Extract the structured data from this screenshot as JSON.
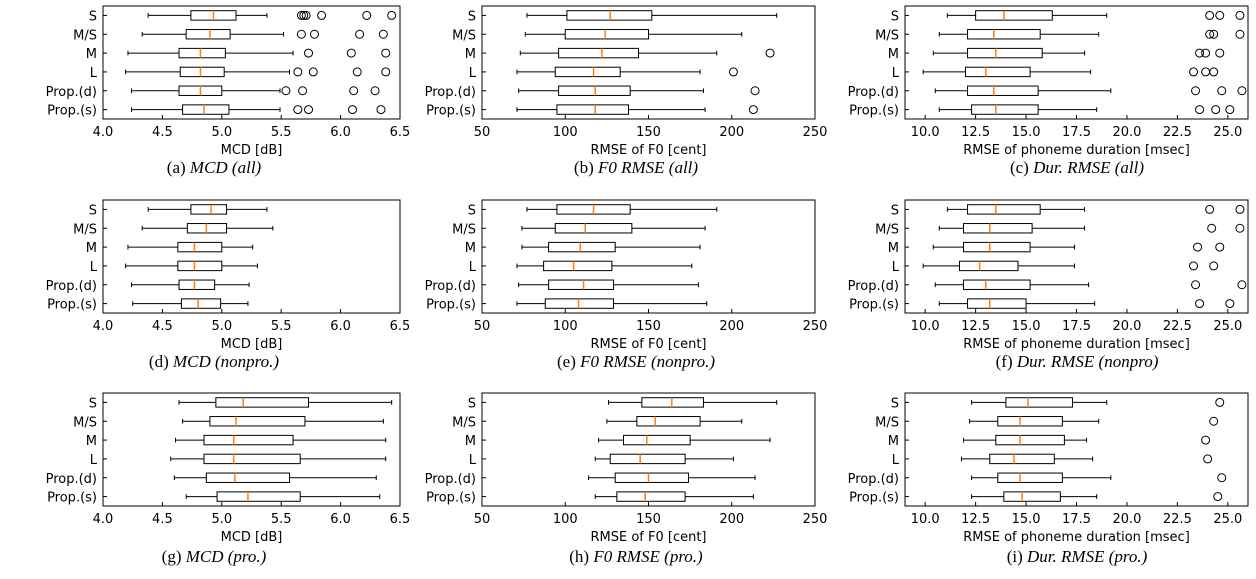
{
  "theme": {
    "median_color": "#ff7f0e",
    "box_color": "#000000"
  },
  "chart_data": [
    {
      "type": "boxplot",
      "panel_id": "a",
      "caption_label": "(a)",
      "caption_title": "MCD (all)",
      "xlabel": "MCD [dB]",
      "xlim": [
        4.0,
        6.5
      ],
      "xticks": [
        4.0,
        4.5,
        5.0,
        5.5,
        6.0,
        6.5
      ],
      "xtick_labels": [
        "4.0",
        "4.5",
        "5.0",
        "5.5",
        "6.0",
        "6.5"
      ],
      "categories": [
        "S",
        "M/S",
        "M",
        "L",
        "Prop.(d)",
        "Prop.(s)"
      ],
      "boxes": [
        {
          "whislo": 4.38,
          "q1": 4.74,
          "med": 4.93,
          "q3": 5.12,
          "whishi": 5.38,
          "fliers": [
            5.67,
            5.69,
            5.71,
            5.84,
            6.22,
            6.43
          ]
        },
        {
          "whislo": 4.33,
          "q1": 4.7,
          "med": 4.9,
          "q3": 5.07,
          "whishi": 5.52,
          "fliers": [
            5.67,
            5.78,
            6.16,
            6.36
          ]
        },
        {
          "whislo": 4.21,
          "q1": 4.64,
          "med": 4.82,
          "q3": 5.03,
          "whishi": 5.6,
          "fliers": [
            5.73,
            6.09,
            6.38
          ]
        },
        {
          "whislo": 4.19,
          "q1": 4.65,
          "med": 4.82,
          "q3": 5.02,
          "whishi": 5.57,
          "fliers": [
            5.64,
            5.77,
            6.14,
            6.38
          ]
        },
        {
          "whislo": 4.24,
          "q1": 4.64,
          "med": 4.82,
          "q3": 5.0,
          "whishi": 5.49,
          "fliers": [
            5.54,
            5.68,
            6.11,
            6.29
          ]
        },
        {
          "whislo": 4.24,
          "q1": 4.67,
          "med": 4.85,
          "q3": 5.06,
          "whishi": 5.49,
          "fliers": [
            5.64,
            5.73,
            6.1,
            6.34
          ]
        }
      ]
    },
    {
      "type": "boxplot",
      "panel_id": "b",
      "caption_label": "(b)",
      "caption_title": "F0 RMSE (all)",
      "xlabel": "RMSE of F0 [cent]",
      "xlim": [
        50,
        250
      ],
      "xticks": [
        50,
        100,
        150,
        200,
        250
      ],
      "xtick_labels": [
        "50",
        "100",
        "150",
        "200",
        "250"
      ],
      "categories": [
        "S",
        "M/S",
        "M",
        "L",
        "Prop.(d)",
        "Prop.(s)"
      ],
      "boxes": [
        {
          "whislo": 77,
          "q1": 101,
          "med": 127,
          "q3": 152,
          "whishi": 227,
          "fliers": []
        },
        {
          "whislo": 76,
          "q1": 100,
          "med": 124,
          "q3": 150,
          "whishi": 206,
          "fliers": []
        },
        {
          "whislo": 73,
          "q1": 96,
          "med": 122,
          "q3": 144,
          "whishi": 191,
          "fliers": [
            223
          ]
        },
        {
          "whislo": 71,
          "q1": 94,
          "med": 117,
          "q3": 133,
          "whishi": 181,
          "fliers": [
            201
          ]
        },
        {
          "whislo": 72,
          "q1": 96,
          "med": 118,
          "q3": 139,
          "whishi": 183,
          "fliers": [
            214
          ]
        },
        {
          "whislo": 71,
          "q1": 95,
          "med": 118,
          "q3": 138,
          "whishi": 184,
          "fliers": [
            213
          ]
        }
      ]
    },
    {
      "type": "boxplot",
      "panel_id": "c",
      "caption_label": "(c)",
      "caption_title": "Dur. RMSE (all)",
      "xlabel": "RMSE of phoneme duration [msec]",
      "xlim": [
        9.0,
        26.0
      ],
      "xticks": [
        10.0,
        12.5,
        15.0,
        17.5,
        20.0,
        22.5,
        25.0
      ],
      "xtick_labels": [
        "10.0",
        "12.5",
        "15.0",
        "17.5",
        "20.0",
        "22.5",
        "25.0"
      ],
      "categories": [
        "S",
        "M/S",
        "M",
        "L",
        "Prop.(d)",
        "Prop.(s)"
      ],
      "boxes": [
        {
          "whislo": 11.1,
          "q1": 12.5,
          "med": 13.9,
          "q3": 16.3,
          "whishi": 19.0,
          "fliers": [
            24.1,
            24.6,
            25.6
          ]
        },
        {
          "whislo": 10.7,
          "q1": 12.1,
          "med": 13.4,
          "q3": 15.7,
          "whishi": 18.6,
          "fliers": [
            24.1,
            24.3,
            25.6
          ]
        },
        {
          "whislo": 10.4,
          "q1": 12.1,
          "med": 13.5,
          "q3": 15.8,
          "whishi": 17.9,
          "fliers": [
            23.6,
            23.9,
            24.6
          ]
        },
        {
          "whislo": 9.9,
          "q1": 12.0,
          "med": 13.0,
          "q3": 15.2,
          "whishi": 18.2,
          "fliers": [
            23.3,
            23.9,
            24.3
          ]
        },
        {
          "whislo": 10.5,
          "q1": 12.1,
          "med": 13.4,
          "q3": 15.6,
          "whishi": 19.2,
          "fliers": [
            23.4,
            24.7,
            25.7
          ]
        },
        {
          "whislo": 10.7,
          "q1": 12.3,
          "med": 13.5,
          "q3": 15.6,
          "whishi": 18.5,
          "fliers": [
            23.6,
            24.4,
            25.1
          ]
        }
      ]
    },
    {
      "type": "boxplot",
      "panel_id": "d",
      "caption_label": "(d)",
      "caption_title": "MCD (nonpro.)",
      "xlabel": "MCD [dB]",
      "xlim": [
        4.0,
        6.5
      ],
      "xticks": [
        4.0,
        4.5,
        5.0,
        5.5,
        6.0,
        6.5
      ],
      "xtick_labels": [
        "4.0",
        "4.5",
        "5.0",
        "5.5",
        "6.0",
        "6.5"
      ],
      "categories": [
        "S",
        "M/S",
        "M",
        "L",
        "Prop.(d)",
        "Prop.(s)"
      ],
      "boxes": [
        {
          "whislo": 4.38,
          "q1": 4.74,
          "med": 4.91,
          "q3": 5.04,
          "whishi": 5.38,
          "fliers": []
        },
        {
          "whislo": 4.33,
          "q1": 4.71,
          "med": 4.87,
          "q3": 5.04,
          "whishi": 5.43,
          "fliers": []
        },
        {
          "whislo": 4.21,
          "q1": 4.63,
          "med": 4.77,
          "q3": 5.0,
          "whishi": 5.26,
          "fliers": []
        },
        {
          "whislo": 4.19,
          "q1": 4.63,
          "med": 4.77,
          "q3": 5.0,
          "whishi": 5.3,
          "fliers": []
        },
        {
          "whislo": 4.24,
          "q1": 4.64,
          "med": 4.77,
          "q3": 4.94,
          "whishi": 5.23,
          "fliers": []
        },
        {
          "whislo": 4.25,
          "q1": 4.66,
          "med": 4.8,
          "q3": 4.99,
          "whishi": 5.22,
          "fliers": []
        }
      ]
    },
    {
      "type": "boxplot",
      "panel_id": "e",
      "caption_label": "(e)",
      "caption_title": "F0 RMSE (nonpro.)",
      "xlabel": "RMSE of F0 [cent]",
      "xlim": [
        50,
        250
      ],
      "xticks": [
        50,
        100,
        150,
        200,
        250
      ],
      "xtick_labels": [
        "50",
        "100",
        "150",
        "200",
        "250"
      ],
      "categories": [
        "S",
        "M/S",
        "M",
        "L",
        "Prop.(d)",
        "Prop.(s)"
      ],
      "boxes": [
        {
          "whislo": 77,
          "q1": 95,
          "med": 117,
          "q3": 139,
          "whishi": 191,
          "fliers": []
        },
        {
          "whislo": 74,
          "q1": 94,
          "med": 112,
          "q3": 140,
          "whishi": 184,
          "fliers": []
        },
        {
          "whislo": 74,
          "q1": 90,
          "med": 109,
          "q3": 130,
          "whishi": 181,
          "fliers": []
        },
        {
          "whislo": 71,
          "q1": 87,
          "med": 105,
          "q3": 128,
          "whishi": 176,
          "fliers": []
        },
        {
          "whislo": 72,
          "q1": 90,
          "med": 111,
          "q3": 129,
          "whishi": 180,
          "fliers": []
        },
        {
          "whislo": 71,
          "q1": 88,
          "med": 108,
          "q3": 129,
          "whishi": 185,
          "fliers": []
        }
      ]
    },
    {
      "type": "boxplot",
      "panel_id": "f",
      "caption_label": "(f)",
      "caption_title": "Dur. RMSE (nonpro)",
      "xlabel": "RMSE of phoneme duration [msec]",
      "xlim": [
        9.0,
        26.0
      ],
      "xticks": [
        10.0,
        12.5,
        15.0,
        17.5,
        20.0,
        22.5,
        25.0
      ],
      "xtick_labels": [
        "10.0",
        "12.5",
        "15.0",
        "17.5",
        "20.0",
        "22.5",
        "25.0"
      ],
      "categories": [
        "S",
        "M/S",
        "M",
        "L",
        "Prop.(d)",
        "Prop.(s)"
      ],
      "boxes": [
        {
          "whislo": 11.1,
          "q1": 12.1,
          "med": 13.5,
          "q3": 15.7,
          "whishi": 17.9,
          "fliers": [
            24.1,
            25.6
          ]
        },
        {
          "whislo": 10.7,
          "q1": 11.9,
          "med": 13.2,
          "q3": 15.3,
          "whishi": 17.9,
          "fliers": [
            24.2,
            25.6
          ]
        },
        {
          "whislo": 10.4,
          "q1": 11.9,
          "med": 13.2,
          "q3": 15.2,
          "whishi": 17.4,
          "fliers": [
            23.5,
            24.6
          ]
        },
        {
          "whislo": 9.9,
          "q1": 11.7,
          "med": 12.7,
          "q3": 14.6,
          "whishi": 17.4,
          "fliers": [
            23.3,
            24.3
          ]
        },
        {
          "whislo": 10.5,
          "q1": 11.9,
          "med": 13.0,
          "q3": 15.2,
          "whishi": 18.1,
          "fliers": [
            23.4,
            25.7
          ]
        },
        {
          "whislo": 10.7,
          "q1": 12.1,
          "med": 13.2,
          "q3": 15.0,
          "whishi": 18.4,
          "fliers": [
            23.6,
            25.1
          ]
        }
      ]
    },
    {
      "type": "boxplot",
      "panel_id": "g",
      "caption_label": "(g)",
      "caption_title": "MCD (pro.)",
      "xlabel": "MCD [dB]",
      "xlim": [
        4.0,
        6.5
      ],
      "xticks": [
        4.0,
        4.5,
        5.0,
        5.5,
        6.0,
        6.5
      ],
      "xtick_labels": [
        "4.0",
        "4.5",
        "5.0",
        "5.5",
        "6.0",
        "6.5"
      ],
      "categories": [
        "S",
        "M/S",
        "M",
        "L",
        "Prop.(d)",
        "Prop.(s)"
      ],
      "boxes": [
        {
          "whislo": 4.64,
          "q1": 4.95,
          "med": 5.18,
          "q3": 5.73,
          "whishi": 6.43,
          "fliers": []
        },
        {
          "whislo": 4.67,
          "q1": 4.9,
          "med": 5.12,
          "q3": 5.7,
          "whishi": 6.36,
          "fliers": []
        },
        {
          "whislo": 4.61,
          "q1": 4.85,
          "med": 5.1,
          "q3": 5.6,
          "whishi": 6.38,
          "fliers": []
        },
        {
          "whislo": 4.57,
          "q1": 4.85,
          "med": 5.1,
          "q3": 5.66,
          "whishi": 6.38,
          "fliers": []
        },
        {
          "whislo": 4.6,
          "q1": 4.87,
          "med": 5.11,
          "q3": 5.57,
          "whishi": 6.3,
          "fliers": []
        },
        {
          "whislo": 4.7,
          "q1": 4.96,
          "med": 5.22,
          "q3": 5.66,
          "whishi": 6.33,
          "fliers": []
        }
      ]
    },
    {
      "type": "boxplot",
      "panel_id": "h",
      "caption_label": "(h)",
      "caption_title": "F0 RMSE (pro.)",
      "xlabel": "RMSE of F0 [cent]",
      "xlim": [
        50,
        250
      ],
      "xticks": [
        50,
        100,
        150,
        200,
        250
      ],
      "xtick_labels": [
        "50",
        "100",
        "150",
        "200",
        "250"
      ],
      "categories": [
        "S",
        "M/S",
        "M",
        "L",
        "Prop.(d)",
        "Prop.(s)"
      ],
      "boxes": [
        {
          "whislo": 126,
          "q1": 146,
          "med": 164,
          "q3": 183,
          "whishi": 227,
          "fliers": []
        },
        {
          "whislo": 125,
          "q1": 143,
          "med": 154,
          "q3": 181,
          "whishi": 206,
          "fliers": []
        },
        {
          "whislo": 120,
          "q1": 135,
          "med": 149,
          "q3": 175,
          "whishi": 223,
          "fliers": []
        },
        {
          "whislo": 118,
          "q1": 127,
          "med": 145,
          "q3": 172,
          "whishi": 201,
          "fliers": []
        },
        {
          "whislo": 114,
          "q1": 130,
          "med": 150,
          "q3": 174,
          "whishi": 214,
          "fliers": []
        },
        {
          "whislo": 118,
          "q1": 131,
          "med": 148,
          "q3": 172,
          "whishi": 213,
          "fliers": []
        }
      ]
    },
    {
      "type": "boxplot",
      "panel_id": "i",
      "caption_label": "(i)",
      "caption_title": "Dur. RMSE (pro.)",
      "xlabel": "RMSE of phoneme duration [msec]",
      "xlim": [
        9.0,
        26.0
      ],
      "xticks": [
        10.0,
        12.5,
        15.0,
        17.5,
        20.0,
        22.5,
        25.0
      ],
      "xtick_labels": [
        "10.0",
        "12.5",
        "15.0",
        "17.5",
        "20.0",
        "22.5",
        "25.0"
      ],
      "categories": [
        "S",
        "M/S",
        "M",
        "L",
        "Prop.(d)",
        "Prop.(s)"
      ],
      "boxes": [
        {
          "whislo": 12.3,
          "q1": 14.0,
          "med": 15.1,
          "q3": 17.3,
          "whishi": 19.0,
          "fliers": [
            24.6
          ]
        },
        {
          "whislo": 12.2,
          "q1": 13.6,
          "med": 14.7,
          "q3": 16.8,
          "whishi": 18.6,
          "fliers": [
            24.3
          ]
        },
        {
          "whislo": 11.9,
          "q1": 13.5,
          "med": 14.7,
          "q3": 16.9,
          "whishi": 18.0,
          "fliers": [
            23.9
          ]
        },
        {
          "whislo": 11.8,
          "q1": 13.2,
          "med": 14.4,
          "q3": 16.4,
          "whishi": 18.3,
          "fliers": [
            24.0
          ]
        },
        {
          "whislo": 12.3,
          "q1": 13.6,
          "med": 14.7,
          "q3": 16.8,
          "whishi": 19.2,
          "fliers": [
            24.7
          ]
        },
        {
          "whislo": 12.3,
          "q1": 13.9,
          "med": 14.8,
          "q3": 16.7,
          "whishi": 18.5,
          "fliers": [
            24.5
          ]
        }
      ]
    }
  ]
}
